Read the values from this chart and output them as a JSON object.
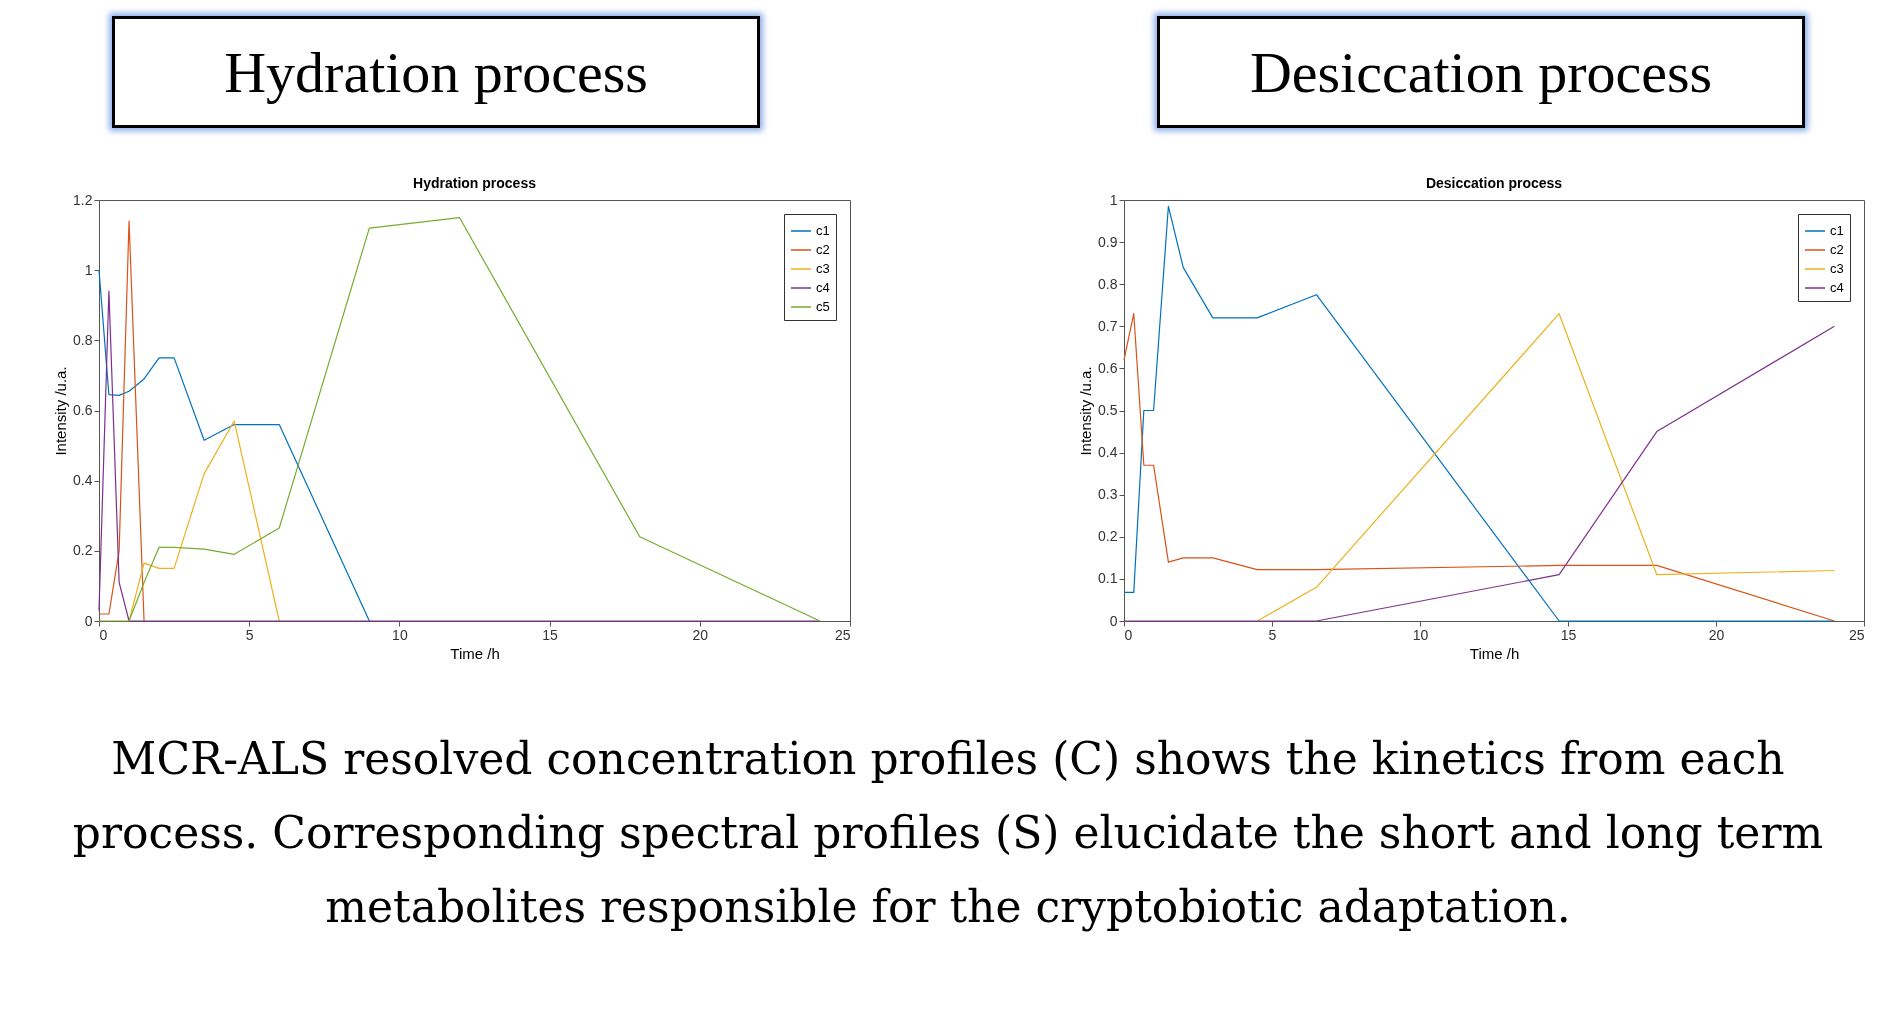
{
  "chart_data": [
    {
      "type": "line",
      "title": "Hydration process",
      "xlabel": "Time /h",
      "ylabel": "Intensity /u.a.",
      "annotations": [
        "Hydration process",
        "MCR-ALS resolved concentration profiles (C) shows the kinetics from each process. Corresponding spectral profiles (S) elucidate the short and long term metabolites responsible for the cryptobiotic adaptation."
      ],
      "x": [
        0,
        0.33,
        0.67,
        1,
        1.5,
        2,
        2.5,
        3.5,
        4.5,
        6,
        9,
        12,
        18,
        24
      ],
      "series": [
        {
          "name": "c1",
          "color": "#0072bd",
          "values": [
            1.0,
            0.645,
            0.643,
            0.655,
            0.69,
            0.75,
            0.75,
            0.515,
            0.56,
            0.56,
            0,
            null,
            null,
            null
          ]
        },
        {
          "name": "c2",
          "color": "#d95319",
          "values": [
            0.02,
            0.02,
            0.2,
            1.14,
            0,
            null,
            null,
            null,
            null,
            null,
            null,
            null,
            null,
            null
          ]
        },
        {
          "name": "c3",
          "color": "#edb120",
          "values": [
            null,
            null,
            null,
            0,
            0.165,
            0.15,
            0.15,
            0.42,
            0.57,
            0,
            null,
            null,
            null,
            null
          ]
        },
        {
          "name": "c4",
          "color": "#7e2f8e",
          "values": [
            0.03,
            0.94,
            0.11,
            0,
            0,
            0,
            0,
            0,
            0,
            0,
            0,
            0,
            0,
            0
          ]
        },
        {
          "name": "c5",
          "color": "#77ac30",
          "values": [
            0,
            0,
            0,
            0,
            0.11,
            0.21,
            0.21,
            0.205,
            0.19,
            0.265,
            1.12,
            1.15,
            0.24,
            0
          ]
        }
      ],
      "xlim": [
        0,
        25
      ],
      "xticks": [
        0,
        5,
        10,
        15,
        20,
        25
      ],
      "ylim": [
        0,
        1.2
      ],
      "yticks": [
        0,
        0.2,
        0.4,
        0.6,
        0.8,
        1,
        1.2
      ],
      "legend": "top right",
      "grid": false
    },
    {
      "type": "line",
      "title": "Desiccation process",
      "xlabel": "Time /h",
      "ylabel": "Intensity /u.a.",
      "annotations": [
        "Desiccation process"
      ],
      "x": [
        0,
        0.33,
        0.67,
        1,
        1.5,
        2,
        3,
        4.5,
        6.5,
        14.7,
        18,
        24
      ],
      "series": [
        {
          "name": "c1",
          "color": "#0072bd",
          "values": [
            0.068,
            0.068,
            0.5,
            0.5,
            0.985,
            0.84,
            0.72,
            0.72,
            0.775,
            0,
            0,
            0
          ]
        },
        {
          "name": "c2",
          "color": "#d95319",
          "values": [
            0.62,
            0.73,
            0.37,
            0.37,
            0.14,
            0.15,
            0.15,
            0.122,
            0.122,
            0.132,
            0.132,
            0
          ]
        },
        {
          "name": "c3",
          "color": "#edb120",
          "values": [
            null,
            null,
            null,
            null,
            null,
            null,
            null,
            0,
            0.08,
            0.73,
            0.11,
            0.12
          ]
        },
        {
          "name": "c4",
          "color": "#7e2f8e",
          "values": [
            0,
            0,
            0,
            0,
            0,
            0,
            0,
            0,
            0,
            0.11,
            0.45,
            0.7
          ]
        }
      ],
      "xlim": [
        0,
        25
      ],
      "xticks": [
        0,
        5,
        10,
        15,
        20,
        25
      ],
      "ylim": [
        0,
        1
      ],
      "yticks": [
        0,
        0.1,
        0.2,
        0.3,
        0.4,
        0.5,
        0.6,
        0.7,
        0.8,
        0.9,
        1
      ],
      "legend": "top right",
      "grid": false
    }
  ]
}
